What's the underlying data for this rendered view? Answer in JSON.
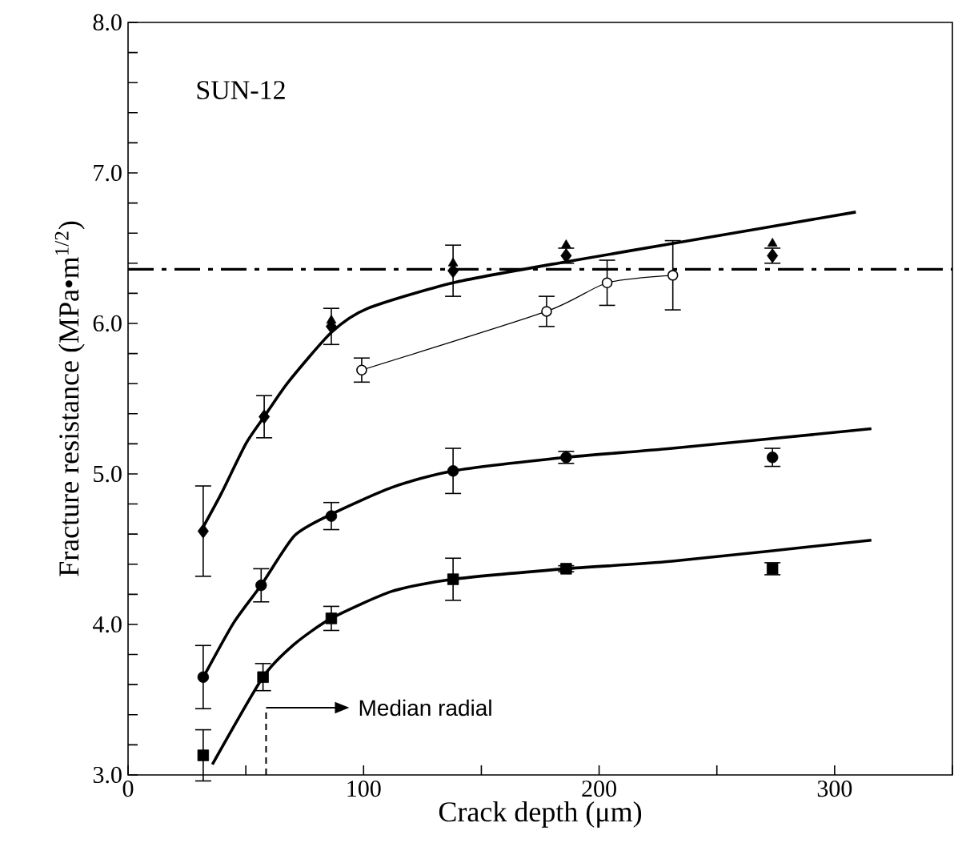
{
  "chart_data": {
    "type": "scatter",
    "xlabel": "Crack depth (μm)",
    "ylabel": "Fracture resistance (MPa•m$^{1/2}$)",
    "annotations": [
      "SUN-12"
    ],
    "xlim": [
      0,
      350
    ],
    "ylim": [
      3,
      8
    ],
    "xticks": [
      0,
      {
        "value": 50,
        "label": null
      },
      100,
      {
        "value": 150,
        "label": null
      },
      200,
      {
        "value": 250,
        "label": null
      },
      300,
      {
        "value": 350,
        "label": null
      }
    ],
    "yticks": [
      {
        "value": 3,
        "label": "3.0"
      },
      {
        "value": 3.2,
        "label": null
      },
      {
        "value": 3.4,
        "label": null
      },
      {
        "value": 3.6,
        "label": null
      },
      {
        "value": 3.8,
        "label": null
      },
      {
        "value": 4,
        "label": "4.0"
      },
      {
        "value": 4.2,
        "label": null
      },
      {
        "value": 4.4,
        "label": null
      },
      {
        "value": 4.6,
        "label": null
      },
      {
        "value": 4.8,
        "label": null
      },
      {
        "value": 5,
        "label": "5.0"
      },
      {
        "value": 5.2,
        "label": null
      },
      {
        "value": 5.4,
        "label": null
      },
      {
        "value": 5.6,
        "label": null
      },
      {
        "value": 5.8,
        "label": null
      },
      {
        "value": 6,
        "label": "6.0"
      },
      {
        "value": 6.2,
        "label": null
      },
      {
        "value": 6.4,
        "label": null
      },
      {
        "value": 6.6,
        "label": null
      },
      {
        "value": 6.8,
        "label": null
      },
      {
        "value": 7,
        "label": "7.0"
      },
      {
        "value": 7.2,
        "label": null
      },
      {
        "value": 7.4,
        "label": null
      },
      {
        "value": 7.6,
        "label": null
      },
      {
        "value": 7.8,
        "label": null
      },
      {
        "value": 8,
        "label": "8.0"
      }
    ],
    "ref_lines": [
      {
        "axis": "y",
        "value": 6.36,
        "color": "#000000",
        "line_style": "dashed"
      },
      {
        "axis": "x",
        "value": 58.6,
        "color": "#000000",
        "line_style": "dashed",
        "label": "Median radial"
      }
    ],
    "series": [
      {
        "type": "line",
        "color": "#000000",
        "marker": "none",
        "x": [
          32,
          39.6,
          50,
          57.8,
          68,
          86.3,
          101.8,
          138,
          186,
          231,
          309
        ],
        "values": [
          4.65,
          4.87,
          5.2,
          5.38,
          5.61,
          5.94,
          6.1,
          6.27,
          6.41,
          6.53,
          6.74
        ]
      },
      {
        "type": "line",
        "color": "#000000",
        "marker": "none",
        "x": [
          32,
          44.8,
          56.5,
          70.7,
          86,
          112,
          138,
          186,
          231,
          315.6
        ],
        "values": [
          3.65,
          4.01,
          4.26,
          4.59,
          4.73,
          4.91,
          5.02,
          5.11,
          5.17,
          5.3
        ]
      },
      {
        "type": "line",
        "color": "#000000",
        "marker": "none",
        "x": [
          35.8,
          57.3,
          70.7,
          86.3,
          112,
          138,
          186,
          231,
          315.6
        ],
        "values": [
          3.07,
          3.65,
          3.87,
          4.04,
          4.22,
          4.3,
          4.37,
          4.42,
          4.56
        ]
      },
      {
        "type": "line",
        "color": "#000000",
        "marker": "circle",
        "x": [
          99.2,
          177.7,
          203.4,
          231.3
        ],
        "values": [
          5.69,
          6.08,
          6.27,
          6.32
        ],
        "errors": [
          0.08,
          0.1,
          0.15,
          0.23
        ]
      },
      {
        "color": "#000000",
        "marker": "triangle",
        "x": [
          86.3,
          138,
          186,
          273.6
        ],
        "values": [
          6.02,
          6.4,
          6.52,
          6.53
        ]
      },
      {
        "color": "#000000",
        "marker": "diamond",
        "x": [
          31.9,
          57.8,
          86.3,
          138,
          186,
          273.6
        ],
        "values": [
          4.62,
          5.38,
          5.98,
          6.35,
          6.45,
          6.45
        ],
        "errors": [
          0.3,
          0.14,
          0.12,
          0.17,
          0.05,
          0.05
        ]
      },
      {
        "color": "#000000",
        "marker": "circle",
        "x": [
          31.9,
          56.5,
          86.3,
          138,
          186,
          273.6
        ],
        "values": [
          3.65,
          4.26,
          4.72,
          5.02,
          5.11,
          5.11
        ],
        "errors": [
          0.21,
          0.11,
          0.09,
          0.15,
          0.04,
          0.06
        ]
      },
      {
        "color": "#000000",
        "marker": "square",
        "x": [
          31.9,
          57.3,
          86.3,
          138,
          186,
          273.6
        ],
        "values": [
          3.13,
          3.65,
          4.04,
          4.3,
          4.37,
          4.37
        ],
        "errors": [
          0.17,
          0.09,
          0.08,
          0.14,
          0.02,
          0.04
        ]
      }
    ]
  }
}
